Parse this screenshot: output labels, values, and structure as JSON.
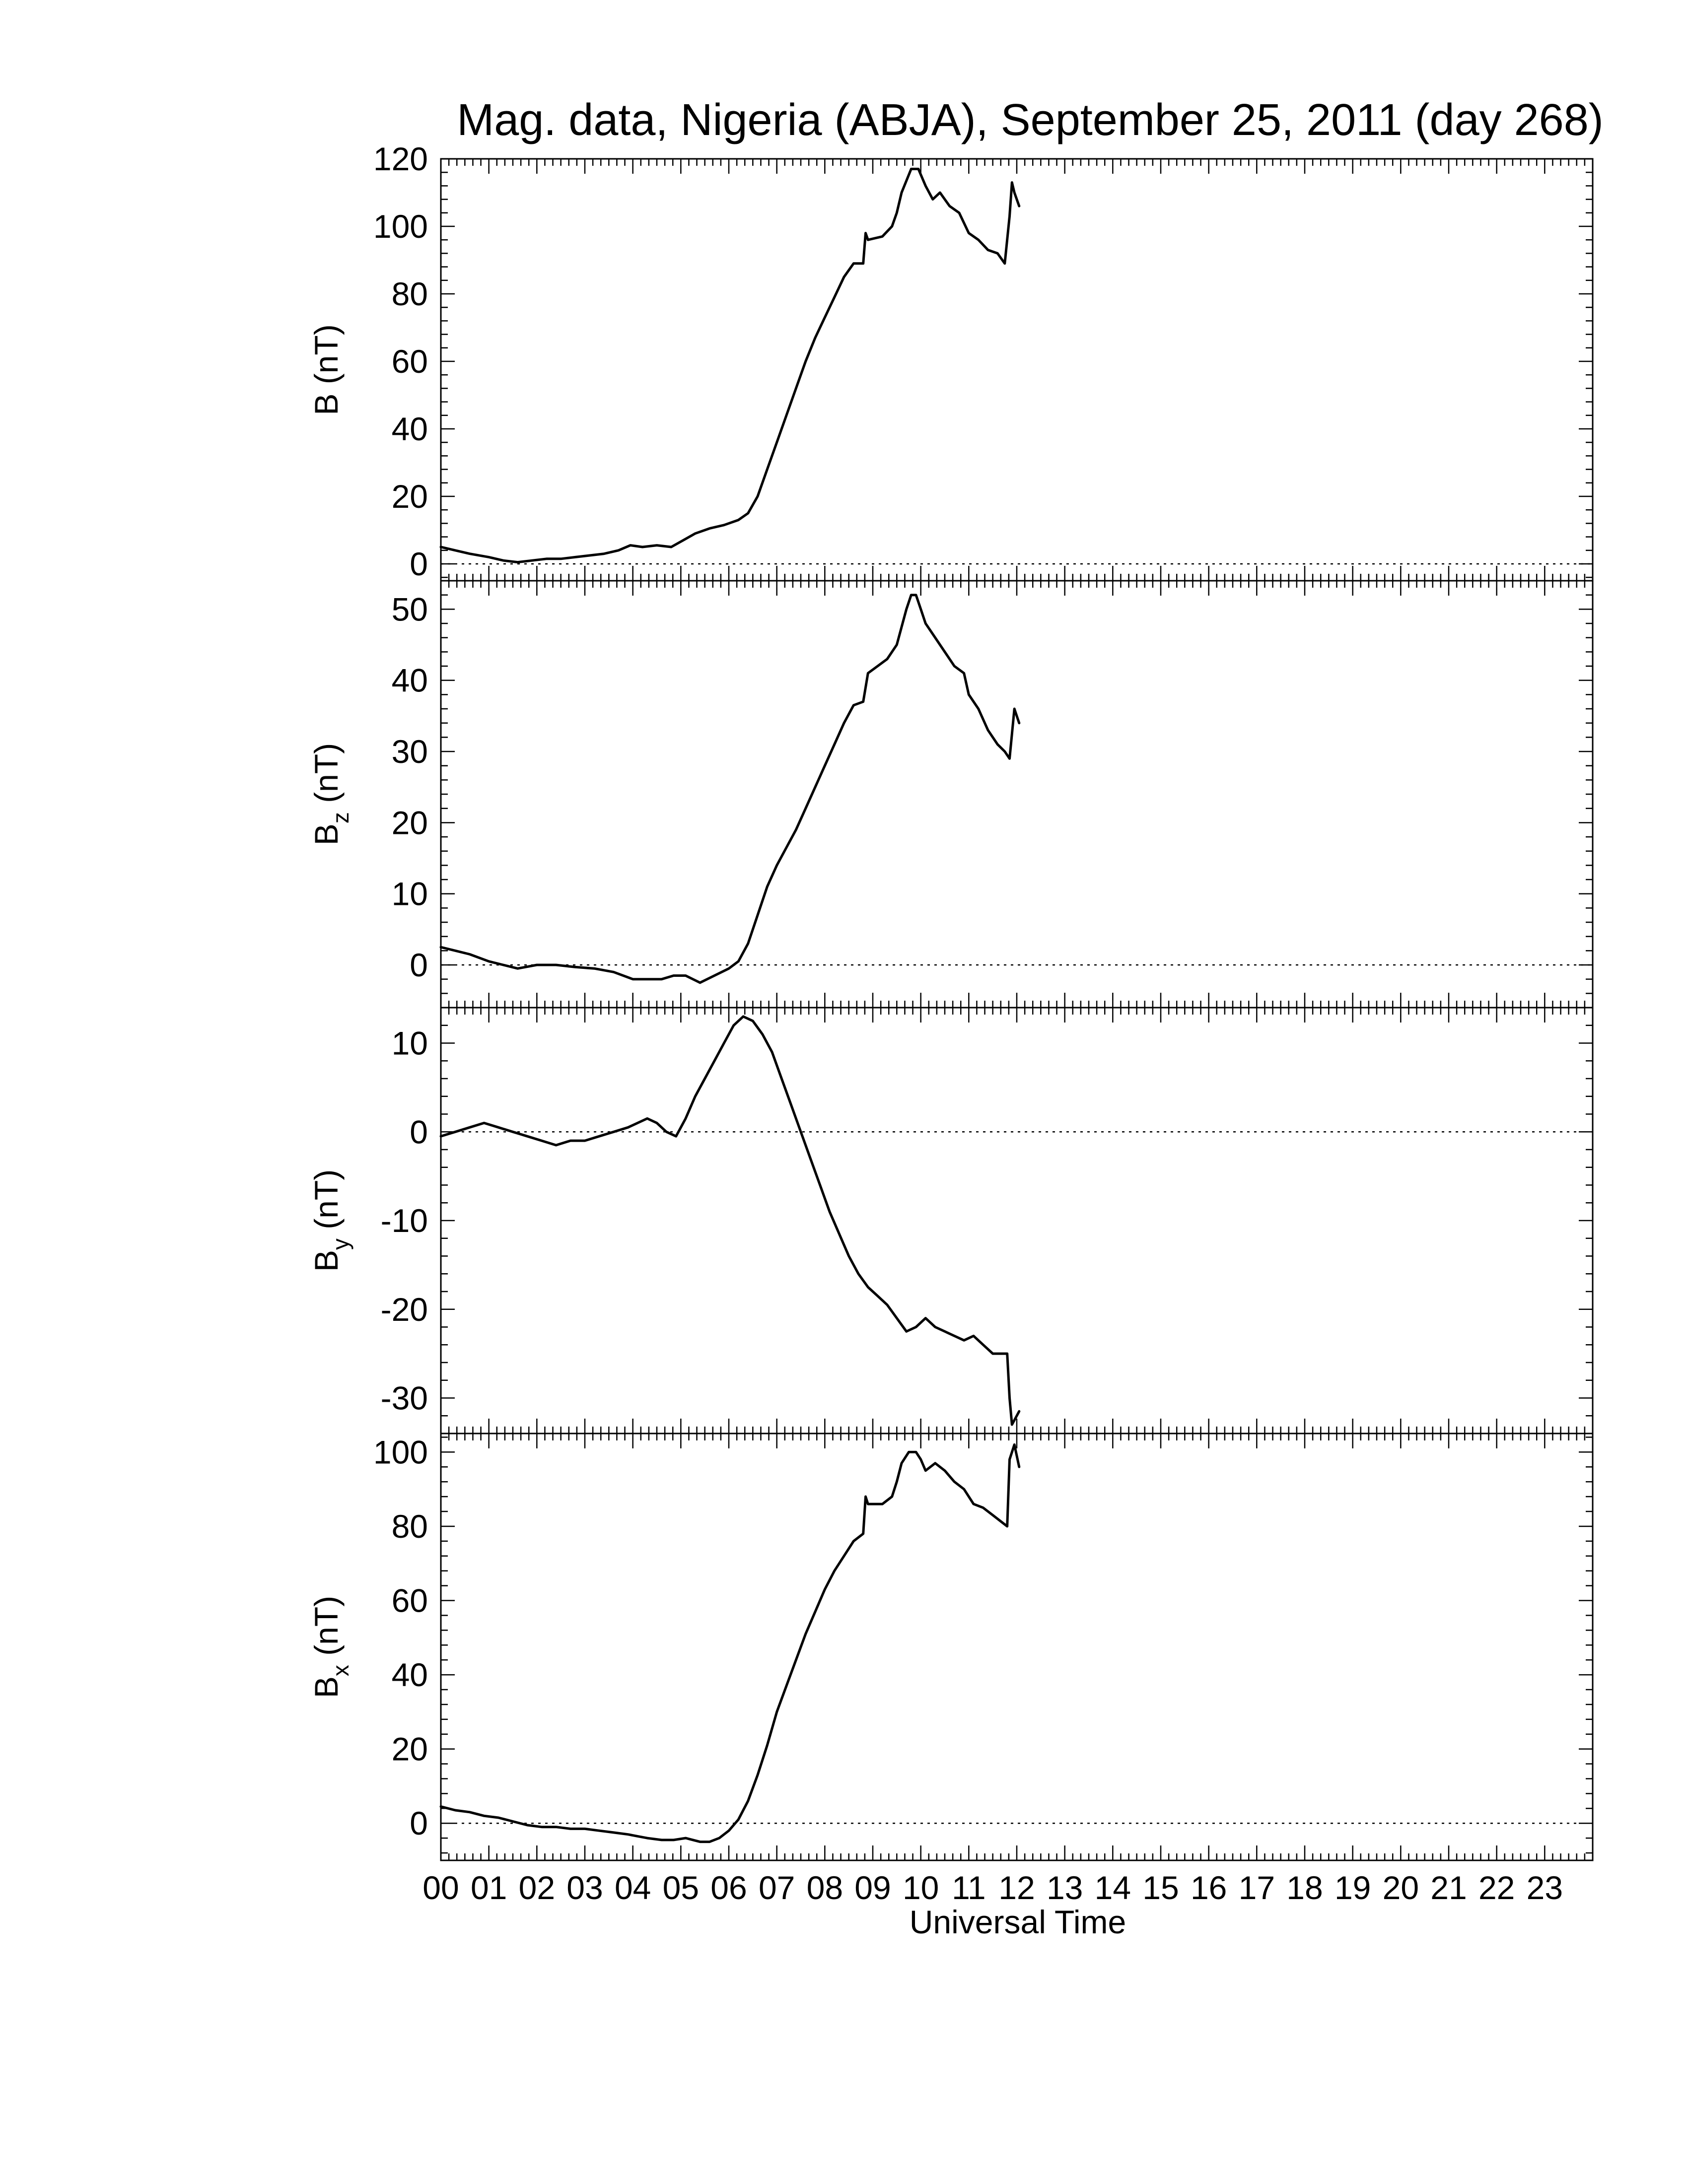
{
  "chart_data": {
    "type": "line",
    "title": "Mag. data, Nigeria (ABJA), September 25, 2011 (day 268)",
    "xlabel": "Universal Time",
    "x_unit": "hours UT",
    "xlim": [
      0,
      24
    ],
    "x_tick_labels": [
      "00",
      "01",
      "02",
      "03",
      "04",
      "05",
      "06",
      "07",
      "08",
      "09",
      "10",
      "11",
      "12",
      "13",
      "14",
      "15",
      "16",
      "17",
      "18",
      "19",
      "20",
      "21",
      "22",
      "23"
    ],
    "zero_reference_line": "dotted",
    "panels": [
      {
        "id": "B",
        "ylabel_main": "B",
        "ylabel_sub": "",
        "ylabel_unit": "(nT)",
        "ylim": [
          -5,
          120
        ],
        "yticks": [
          0,
          20,
          40,
          60,
          80,
          100,
          120
        ],
        "series": [
          {
            "x": [
              0.0,
              0.3,
              0.6,
              1.0,
              1.3,
              1.6,
              1.9,
              2.2,
              2.5,
              2.8,
              3.1,
              3.4,
              3.7,
              3.95,
              4.2,
              4.5,
              4.8,
              5.05,
              5.3,
              5.6,
              5.9,
              6.2,
              6.4,
              6.6,
              6.8,
              7.0,
              7.2,
              7.4,
              7.6,
              7.8,
              8.0,
              8.2,
              8.4,
              8.6,
              8.8,
              8.85,
              8.9,
              9.2,
              9.4,
              9.5,
              9.6,
              9.8,
              9.95,
              10.1,
              10.25,
              10.4,
              10.6,
              10.8,
              11.0,
              11.2,
              11.4,
              11.6,
              11.75,
              11.85,
              11.9,
              11.95,
              12.05
            ],
            "values": [
              5,
              4,
              3,
              2,
              1,
              0.5,
              1,
              1.5,
              1.5,
              2,
              2.5,
              3,
              4,
              5.5,
              5,
              5.5,
              5,
              7,
              9,
              10.5,
              11.5,
              13,
              15,
              20,
              28,
              36,
              44,
              52,
              60,
              67,
              73,
              79,
              85,
              89,
              89,
              98,
              96,
              97,
              100,
              104,
              110,
              117,
              117,
              112,
              108,
              110,
              106,
              104,
              98,
              96,
              93,
              92,
              89,
              103,
              113,
              110,
              106
            ]
          }
        ]
      },
      {
        "id": "Bz",
        "ylabel_main": "B",
        "ylabel_sub": "z",
        "ylabel_unit": "(nT)",
        "ylim": [
          -6,
          54
        ],
        "yticks": [
          0,
          10,
          20,
          30,
          40,
          50
        ],
        "series": [
          {
            "x": [
              0.0,
              0.3,
              0.6,
              1.0,
              1.3,
              1.6,
              2.0,
              2.4,
              2.8,
              3.2,
              3.6,
              4.0,
              4.3,
              4.6,
              4.85,
              5.1,
              5.4,
              5.7,
              6.0,
              6.2,
              6.4,
              6.6,
              6.8,
              7.0,
              7.2,
              7.4,
              7.6,
              7.8,
              8.0,
              8.2,
              8.4,
              8.6,
              8.8,
              8.9,
              9.1,
              9.3,
              9.5,
              9.7,
              9.8,
              9.9,
              10.0,
              10.1,
              10.2,
              10.3,
              10.5,
              10.7,
              10.9,
              11.0,
              11.2,
              11.4,
              11.6,
              11.75,
              11.85,
              11.95,
              12.05
            ],
            "values": [
              2.5,
              2.0,
              1.5,
              0.5,
              0,
              -0.5,
              0,
              0,
              -0.3,
              -0.5,
              -1,
              -2,
              -2,
              -2,
              -1.5,
              -1.5,
              -2.5,
              -1.5,
              -0.5,
              0.5,
              3,
              7,
              11,
              14,
              16.5,
              19,
              22,
              25,
              28,
              31,
              34,
              36.5,
              37,
              41,
              42,
              43,
              45,
              50,
              52,
              52,
              50,
              48,
              47,
              46,
              44,
              42,
              41,
              38,
              36,
              33,
              31,
              30,
              29,
              36,
              34
            ]
          }
        ]
      },
      {
        "id": "By",
        "ylabel_main": "B",
        "ylabel_sub": "y",
        "ylabel_unit": "(nT)",
        "ylim": [
          -34,
          14
        ],
        "yticks": [
          -30,
          -20,
          -10,
          0,
          10
        ],
        "series": [
          {
            "x": [
              0.0,
              0.3,
              0.6,
              0.9,
              1.2,
              1.5,
              1.8,
              2.1,
              2.4,
              2.7,
              3.0,
              3.3,
              3.6,
              3.9,
              4.1,
              4.3,
              4.5,
              4.7,
              4.9,
              5.1,
              5.3,
              5.5,
              5.7,
              5.9,
              6.1,
              6.3,
              6.5,
              6.7,
              6.9,
              7.1,
              7.3,
              7.5,
              7.7,
              7.9,
              8.1,
              8.3,
              8.5,
              8.7,
              8.9,
              9.1,
              9.3,
              9.5,
              9.7,
              9.9,
              10.1,
              10.3,
              10.5,
              10.7,
              10.9,
              11.1,
              11.3,
              11.5,
              11.7,
              11.8,
              11.85,
              11.9,
              12.0,
              12.05
            ],
            "values": [
              -0.5,
              0,
              0.5,
              1,
              0.5,
              0,
              -0.5,
              -1,
              -1.5,
              -1,
              -1,
              -0.5,
              0,
              0.5,
              1,
              1.5,
              1,
              0,
              -0.5,
              1.5,
              4,
              6,
              8,
              10,
              12,
              13,
              12.5,
              11,
              9,
              6,
              3,
              0,
              -3,
              -6,
              -9,
              -11.5,
              -14,
              -16,
              -17.5,
              -18.5,
              -19.5,
              -21,
              -22.5,
              -22,
              -21,
              -22,
              -22.5,
              -23,
              -23.5,
              -23,
              -24,
              -25,
              -25,
              -25,
              -30,
              -33,
              -32,
              -31.5
            ]
          }
        ]
      },
      {
        "id": "Bx",
        "ylabel_main": "B",
        "ylabel_sub": "x",
        "ylabel_unit": "(nT)",
        "ylim": [
          -10,
          105
        ],
        "yticks": [
          0,
          20,
          40,
          60,
          80,
          100
        ],
        "series": [
          {
            "x": [
              0.0,
              0.3,
              0.6,
              0.9,
              1.2,
              1.5,
              1.8,
              2.1,
              2.4,
              2.7,
              3.0,
              3.3,
              3.6,
              3.9,
              4.1,
              4.3,
              4.6,
              4.85,
              5.1,
              5.4,
              5.6,
              5.8,
              6.0,
              6.2,
              6.4,
              6.6,
              6.8,
              7.0,
              7.2,
              7.4,
              7.6,
              7.8,
              8.0,
              8.2,
              8.4,
              8.6,
              8.8,
              8.85,
              8.9,
              9.2,
              9.4,
              9.5,
              9.6,
              9.75,
              9.9,
              10.0,
              10.1,
              10.3,
              10.5,
              10.7,
              10.9,
              11.1,
              11.3,
              11.5,
              11.7,
              11.8,
              11.85,
              11.95,
              12.05
            ],
            "values": [
              4.5,
              3.5,
              3,
              2,
              1.5,
              0.5,
              -0.5,
              -1,
              -1,
              -1.5,
              -1.5,
              -2,
              -2.5,
              -3,
              -3.5,
              -4,
              -4.5,
              -4.5,
              -4,
              -5,
              -5,
              -4,
              -2,
              1,
              6,
              13,
              21,
              30,
              37,
              44,
              51,
              57,
              63,
              68,
              72,
              76,
              78,
              88,
              86,
              86,
              88,
              92,
              97,
              100,
              100,
              98,
              95,
              97,
              95,
              92,
              90,
              86,
              85,
              83,
              81,
              80,
              98,
              102,
              96
            ]
          }
        ]
      }
    ]
  }
}
